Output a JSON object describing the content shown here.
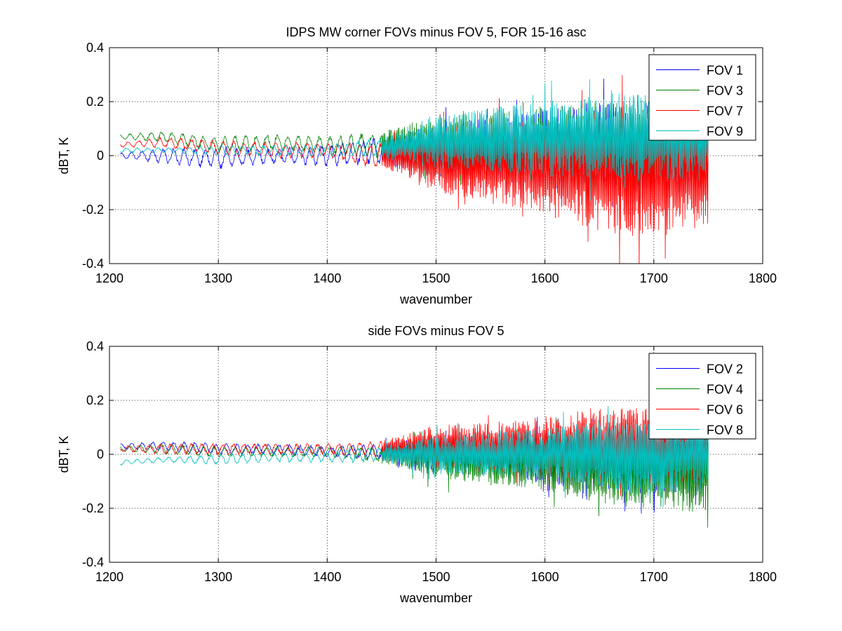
{
  "chart_data": [
    {
      "type": "line",
      "title": "IDPS MW corner FOVs minus FOV 5, FOR 15-16 asc",
      "xlabel": "wavenumber",
      "ylabel": "dBT, K",
      "xlim": [
        1200,
        1800
      ],
      "ylim": [
        -0.4,
        0.4
      ],
      "xticks": [
        "1200",
        "1300",
        "1400",
        "1500",
        "1600",
        "1700",
        "1800"
      ],
      "yticks": [
        "-0.4",
        "-0.2",
        "0",
        "0.2",
        "0.4"
      ],
      "grid": true,
      "legend_position": "top-right",
      "x_range": [
        1210,
        1750
      ],
      "series": [
        {
          "name": "FOV 1",
          "color": "#0000ff",
          "profile": {
            "x": [
              1210,
              1250,
              1300,
              1350,
              1400,
              1450,
              1500,
              1550,
              1600,
              1650,
              1700,
              1750
            ],
            "mean": [
              0.0,
              0.0,
              -0.01,
              0.0,
              0.0,
              0.02,
              0.02,
              0.02,
              0.03,
              0.03,
              0.03,
              0.02
            ],
            "amp": [
              0.01,
              0.03,
              0.04,
              0.03,
              0.04,
              0.05,
              0.1,
              0.12,
              0.15,
              0.17,
              0.17,
              0.16
            ]
          }
        },
        {
          "name": "FOV 3",
          "color": "#008000",
          "profile": {
            "x": [
              1210,
              1250,
              1300,
              1350,
              1400,
              1450,
              1500,
              1550,
              1600,
              1650,
              1700,
              1750
            ],
            "mean": [
              0.07,
              0.07,
              0.04,
              0.05,
              0.04,
              0.04,
              0.03,
              0.03,
              0.03,
              0.03,
              0.03,
              0.03
            ],
            "amp": [
              0.01,
              0.02,
              0.03,
              0.03,
              0.03,
              0.05,
              0.11,
              0.13,
              0.15,
              0.17,
              0.17,
              0.15
            ]
          }
        },
        {
          "name": "FOV 7",
          "color": "#ff0000",
          "profile": {
            "x": [
              1210,
              1250,
              1300,
              1350,
              1400,
              1450,
              1500,
              1550,
              1600,
              1650,
              1700,
              1750
            ],
            "mean": [
              0.04,
              0.05,
              0.03,
              0.02,
              0.02,
              0.0,
              -0.02,
              -0.03,
              -0.04,
              -0.06,
              -0.07,
              -0.06
            ],
            "amp": [
              0.01,
              0.02,
              0.03,
              0.03,
              0.03,
              0.05,
              0.12,
              0.15,
              0.18,
              0.22,
              0.24,
              0.2
            ]
          }
        },
        {
          "name": "FOV 9",
          "color": "#00bfbf",
          "profile": {
            "x": [
              1210,
              1250,
              1300,
              1350,
              1400,
              1450,
              1500,
              1550,
              1600,
              1650,
              1700,
              1750
            ],
            "mean": [
              0.02,
              0.02,
              0.02,
              0.02,
              0.02,
              0.03,
              0.05,
              0.06,
              0.06,
              0.07,
              0.07,
              0.06
            ],
            "amp": [
              0.01,
              0.01,
              0.02,
              0.02,
              0.02,
              0.04,
              0.1,
              0.12,
              0.14,
              0.16,
              0.17,
              0.15
            ]
          }
        }
      ]
    },
    {
      "type": "line",
      "title": "side FOVs minus FOV 5",
      "xlabel": "wavenumber",
      "ylabel": "dBT, K",
      "xlim": [
        1200,
        1800
      ],
      "ylim": [
        -0.4,
        0.4
      ],
      "xticks": [
        "1200",
        "1300",
        "1400",
        "1500",
        "1600",
        "1700",
        "1800"
      ],
      "yticks": [
        "-0.4",
        "-0.2",
        "0",
        "0.2",
        "0.4"
      ],
      "grid": true,
      "legend_position": "top-right",
      "x_range": [
        1210,
        1750
      ],
      "series": [
        {
          "name": "FOV 2",
          "color": "#0000ff",
          "profile": {
            "x": [
              1210,
              1250,
              1300,
              1350,
              1400,
              1450,
              1500,
              1550,
              1600,
              1650,
              1700,
              1750
            ],
            "mean": [
              0.03,
              0.03,
              0.02,
              0.02,
              0.01,
              0.01,
              0.0,
              0.0,
              -0.01,
              -0.02,
              -0.02,
              -0.02
            ],
            "amp": [
              0.01,
              0.02,
              0.02,
              0.02,
              0.02,
              0.03,
              0.07,
              0.08,
              0.1,
              0.12,
              0.13,
              0.12
            ]
          }
        },
        {
          "name": "FOV 4",
          "color": "#008000",
          "profile": {
            "x": [
              1210,
              1250,
              1300,
              1350,
              1400,
              1450,
              1500,
              1550,
              1600,
              1650,
              1700,
              1750
            ],
            "mean": [
              0.02,
              0.02,
              0.01,
              0.01,
              0.01,
              0.0,
              -0.01,
              -0.02,
              -0.03,
              -0.04,
              -0.06,
              -0.06
            ],
            "amp": [
              0.01,
              0.02,
              0.02,
              0.02,
              0.02,
              0.03,
              0.08,
              0.09,
              0.11,
              0.14,
              0.16,
              0.15
            ]
          }
        },
        {
          "name": "FOV 6",
          "color": "#ff0000",
          "profile": {
            "x": [
              1210,
              1250,
              1300,
              1350,
              1400,
              1450,
              1500,
              1550,
              1600,
              1650,
              1700,
              1750
            ],
            "mean": [
              0.02,
              0.02,
              0.02,
              0.02,
              0.02,
              0.02,
              0.03,
              0.03,
              0.03,
              0.04,
              0.03,
              0.02
            ],
            "amp": [
              0.01,
              0.02,
              0.02,
              0.02,
              0.02,
              0.03,
              0.08,
              0.09,
              0.11,
              0.14,
              0.14,
              0.12
            ]
          }
        },
        {
          "name": "FOV 8",
          "color": "#00bfbf",
          "profile": {
            "x": [
              1210,
              1250,
              1300,
              1350,
              1400,
              1450,
              1500,
              1550,
              1600,
              1650,
              1700,
              1750
            ],
            "mean": [
              -0.03,
              -0.02,
              -0.02,
              -0.01,
              -0.01,
              0.0,
              0.0,
              0.0,
              0.0,
              0.0,
              -0.01,
              0.0
            ],
            "amp": [
              0.01,
              0.01,
              0.02,
              0.02,
              0.02,
              0.03,
              0.07,
              0.08,
              0.1,
              0.13,
              0.15,
              0.14
            ]
          }
        }
      ]
    }
  ]
}
